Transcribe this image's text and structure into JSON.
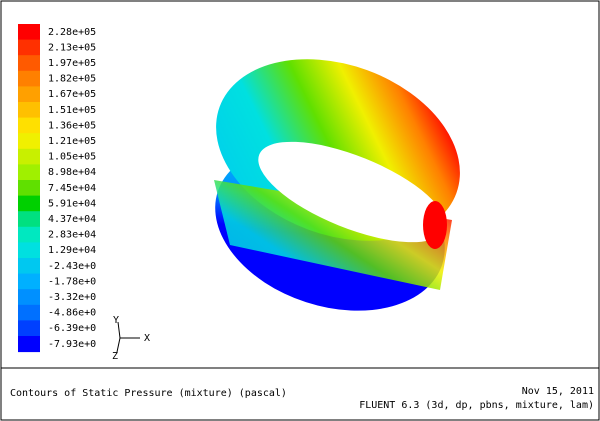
{
  "legend": {
    "labels": [
      "2.28e+05",
      "2.13e+05",
      "1.97e+05",
      "1.82e+05",
      "1.67e+05",
      "1.51e+05",
      "1.36e+05",
      "1.21e+05",
      "1.05e+05",
      "8.98e+04",
      "7.45e+04",
      "5.91e+04",
      "4.37e+04",
      "2.83e+04",
      "1.29e+04",
      "-2.43e+0",
      "-1.78e+0",
      "-3.32e+0",
      "-4.86e+0",
      "-6.39e+0",
      "-7.93e+0"
    ],
    "colors": [
      "#ff0000",
      "#ff3000",
      "#ff5a00",
      "#ff8000",
      "#ffa000",
      "#ffc000",
      "#ffe000",
      "#f0f000",
      "#c8f000",
      "#a0f000",
      "#60e000",
      "#00d000",
      "#00e080",
      "#00e8c0",
      "#00e0e0",
      "#00c8f0",
      "#00b0ff",
      "#0090ff",
      "#0070ff",
      "#0040ff",
      "#0000ff"
    ]
  },
  "triad": {
    "x": "X",
    "y": "Y",
    "z": "Z"
  },
  "footer": {
    "title": "Contours of Static Pressure (mixture) (pascal)",
    "date": "Nov 15, 2011",
    "solver": "FLUENT 6.3 (3d, dp, pbns, mixture, lam)"
  }
}
